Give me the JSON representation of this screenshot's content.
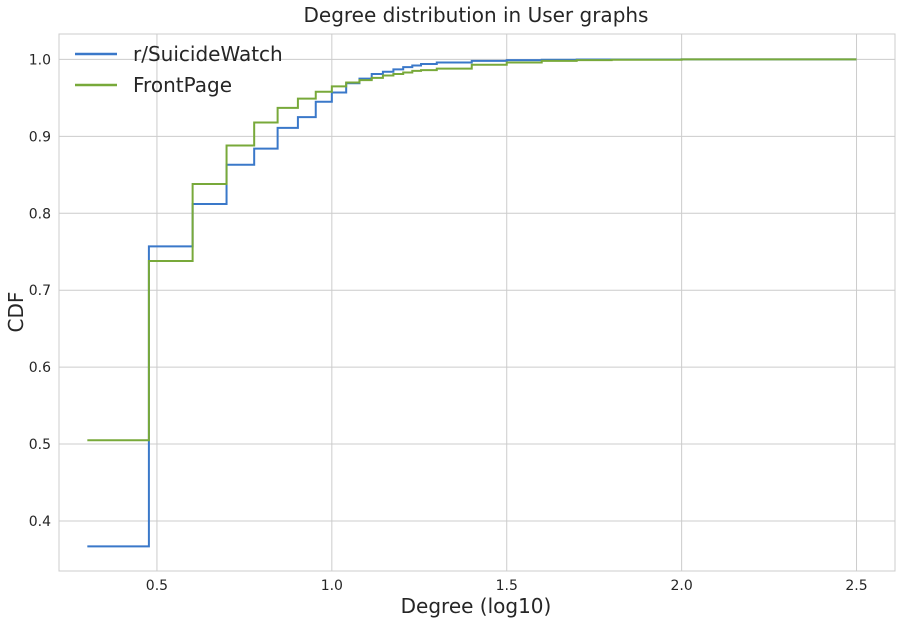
{
  "chart_data": {
    "type": "line",
    "step": "post",
    "title": "Degree distribution in User graphs",
    "xlabel": "Degree (log10)",
    "ylabel": "CDF",
    "xlim": [
      0.22,
      2.61
    ],
    "ylim": [
      0.335,
      1.033
    ],
    "xticks": [
      0.5,
      1.0,
      1.5,
      2.0,
      2.5
    ],
    "xtick_labels": [
      "0.5",
      "1.0",
      "1.5",
      "2.0",
      "2.5"
    ],
    "yticks": [
      0.4,
      0.5,
      0.6,
      0.7,
      0.8,
      0.9,
      1.0
    ],
    "ytick_labels": [
      "0.4",
      "0.5",
      "0.6",
      "0.7",
      "0.8",
      "0.9",
      "1.0"
    ],
    "grid": true,
    "legend_position": "top-left",
    "series": [
      {
        "name": "r/SuicideWatch",
        "color": "#3a78c9",
        "x": [
          0.301,
          0.477,
          0.602,
          0.699,
          0.778,
          0.845,
          0.903,
          0.954,
          1.0,
          1.041,
          1.079,
          1.114,
          1.146,
          1.176,
          1.204,
          1.23,
          1.255,
          1.3,
          1.4,
          1.5,
          1.6,
          1.7,
          1.8,
          2.0,
          2.3,
          2.5
        ],
        "y": [
          0.367,
          0.757,
          0.812,
          0.863,
          0.884,
          0.911,
          0.925,
          0.945,
          0.957,
          0.969,
          0.975,
          0.981,
          0.984,
          0.987,
          0.99,
          0.992,
          0.994,
          0.996,
          0.998,
          0.999,
          0.9995,
          0.9998,
          0.9999,
          1.0,
          1.0,
          1.0
        ]
      },
      {
        "name": "FrontPage",
        "color": "#78a93a",
        "x": [
          0.301,
          0.477,
          0.602,
          0.699,
          0.778,
          0.845,
          0.903,
          0.954,
          1.0,
          1.041,
          1.079,
          1.114,
          1.146,
          1.176,
          1.204,
          1.23,
          1.255,
          1.3,
          1.4,
          1.5,
          1.6,
          1.7,
          1.8,
          2.0,
          2.3,
          2.5
        ],
        "y": [
          0.505,
          0.738,
          0.838,
          0.888,
          0.918,
          0.937,
          0.949,
          0.958,
          0.965,
          0.97,
          0.973,
          0.976,
          0.979,
          0.981,
          0.983,
          0.985,
          0.986,
          0.988,
          0.993,
          0.996,
          0.998,
          0.999,
          0.9995,
          1.0,
          1.0,
          1.0
        ]
      }
    ]
  }
}
